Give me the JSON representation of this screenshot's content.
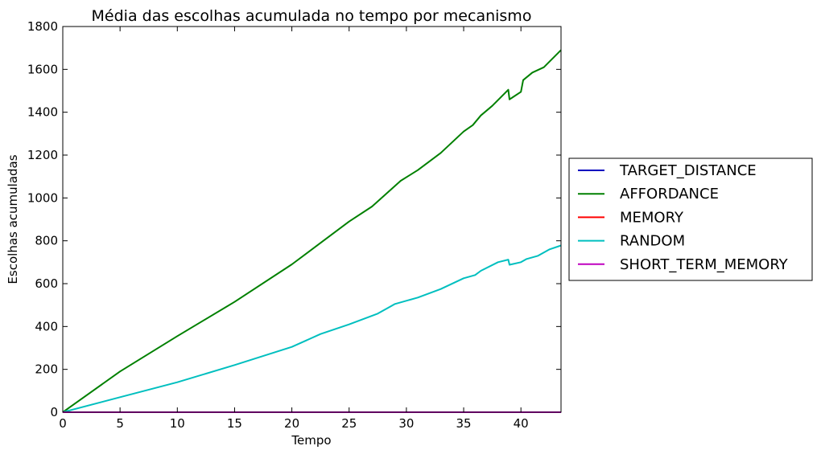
{
  "chart_data": {
    "type": "line",
    "title": "Média  das escolhas acumulada no tempo por mecanismo",
    "xlabel": "Tempo",
    "ylabel": "Escolhas acumuladas",
    "xlim": [
      0,
      43.5
    ],
    "ylim": [
      0,
      1800
    ],
    "xticks": [
      "0",
      "5",
      "10",
      "15",
      "20",
      "25",
      "30",
      "35",
      "40"
    ],
    "yticks": [
      "0",
      "200",
      "400",
      "600",
      "800",
      "1000",
      "1200",
      "1400",
      "1600",
      "1800"
    ],
    "grid": false,
    "legend_position": "center-right outside",
    "series": [
      {
        "name": "TARGET_DISTANCE",
        "color": "#0000bf",
        "points": [
          [
            0,
            0
          ],
          [
            43.5,
            0
          ]
        ]
      },
      {
        "name": "AFFORDANCE",
        "color": "#008000",
        "points": [
          [
            0,
            0
          ],
          [
            5,
            190
          ],
          [
            10,
            355
          ],
          [
            15,
            515
          ],
          [
            20,
            690
          ],
          [
            22.5,
            790
          ],
          [
            25,
            890
          ],
          [
            27,
            960
          ],
          [
            29.5,
            1080
          ],
          [
            31,
            1130
          ],
          [
            33,
            1210
          ],
          [
            35,
            1310
          ],
          [
            35.8,
            1340
          ],
          [
            36.5,
            1385
          ],
          [
            37.5,
            1430
          ],
          [
            38.9,
            1505
          ],
          [
            39,
            1460
          ],
          [
            40,
            1495
          ],
          [
            40.2,
            1550
          ],
          [
            41,
            1585
          ],
          [
            42,
            1610
          ],
          [
            43.5,
            1690
          ]
        ]
      },
      {
        "name": "MEMORY",
        "color": "#ff0000",
        "points": [
          [
            0,
            0
          ],
          [
            43.5,
            0
          ]
        ]
      },
      {
        "name": "RANDOM",
        "color": "#00bfbf",
        "points": [
          [
            0,
            0
          ],
          [
            5,
            70
          ],
          [
            10,
            140
          ],
          [
            15,
            220
          ],
          [
            20,
            305
          ],
          [
            22.5,
            365
          ],
          [
            25,
            410
          ],
          [
            27.5,
            460
          ],
          [
            29,
            505
          ],
          [
            31,
            535
          ],
          [
            33,
            575
          ],
          [
            35,
            625
          ],
          [
            36,
            640
          ],
          [
            36.5,
            660
          ],
          [
            38,
            700
          ],
          [
            38.9,
            712
          ],
          [
            39,
            688
          ],
          [
            40,
            700
          ],
          [
            40.5,
            715
          ],
          [
            41.5,
            730
          ],
          [
            42.5,
            760
          ],
          [
            43.5,
            778
          ]
        ]
      },
      {
        "name": "SHORT_TERM_MEMORY",
        "color": "#bf00bf",
        "points": [
          [
            0,
            0
          ],
          [
            43.5,
            0
          ]
        ]
      }
    ]
  }
}
